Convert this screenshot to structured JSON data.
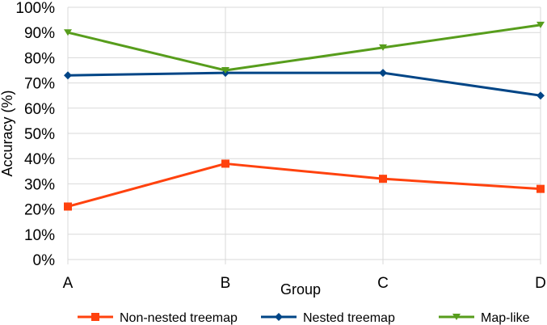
{
  "chart_data": {
    "type": "line",
    "categories": [
      "A",
      "B",
      "C",
      "D"
    ],
    "series": [
      {
        "name": "Non-nested treemap",
        "values": [
          21,
          38,
          32,
          28
        ],
        "color": "#ff420e",
        "marker": "square"
      },
      {
        "name": "Nested treemap",
        "values": [
          73,
          74,
          74,
          65
        ],
        "color": "#004586",
        "marker": "diamond"
      },
      {
        "name": "Map-like",
        "values": [
          90,
          75,
          84,
          93
        ],
        "color": "#579d1c",
        "marker": "triangle-down"
      }
    ],
    "xlabel": "Group",
    "ylabel": "Accuracy (%)",
    "ylim": [
      0,
      100
    ],
    "yticks": [
      "0%",
      "10%",
      "20%",
      "30%",
      "40%",
      "50%",
      "60%",
      "70%",
      "80%",
      "90%",
      "100%"
    ],
    "grid": true,
    "legend": "bottom"
  }
}
